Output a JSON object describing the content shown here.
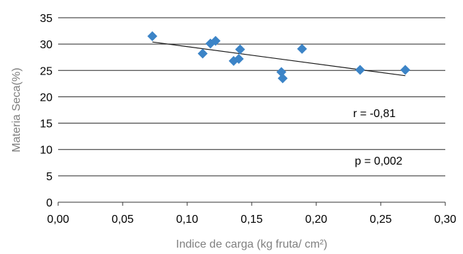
{
  "chart_data": {
    "type": "scatter",
    "xlabel": "Indice de carga (kg fruta/ cm²)",
    "ylabel": "Materia Seca(%)",
    "xlim": [
      0,
      0.3
    ],
    "ylim": [
      0,
      35
    ],
    "x_ticks": [
      "0,00",
      "0,05",
      "0,10",
      "0,15",
      "0,20",
      "0,25",
      "0,30"
    ],
    "y_ticks": [
      "0",
      "5",
      "10",
      "15",
      "20",
      "25",
      "30",
      "35"
    ],
    "grid": "horizontal",
    "series": [
      {
        "color": "#3c84c7",
        "marker": "diamond",
        "points": [
          {
            "x": 0.073,
            "y": 31.5
          },
          {
            "x": 0.112,
            "y": 28.2
          },
          {
            "x": 0.118,
            "y": 30.1
          },
          {
            "x": 0.122,
            "y": 30.6
          },
          {
            "x": 0.136,
            "y": 26.8
          },
          {
            "x": 0.14,
            "y": 27.2
          },
          {
            "x": 0.141,
            "y": 29.0
          },
          {
            "x": 0.173,
            "y": 24.7
          },
          {
            "x": 0.174,
            "y": 23.5
          },
          {
            "x": 0.189,
            "y": 29.1
          },
          {
            "x": 0.234,
            "y": 25.1
          },
          {
            "x": 0.269,
            "y": 25.1
          }
        ]
      }
    ],
    "trendline": {
      "x1": 0.073,
      "y1": 30.4,
      "x2": 0.269,
      "y2": 24.0,
      "color": "#1a1a1a"
    },
    "annotations": [
      "r = -0,81",
      "p = 0,002"
    ]
  }
}
